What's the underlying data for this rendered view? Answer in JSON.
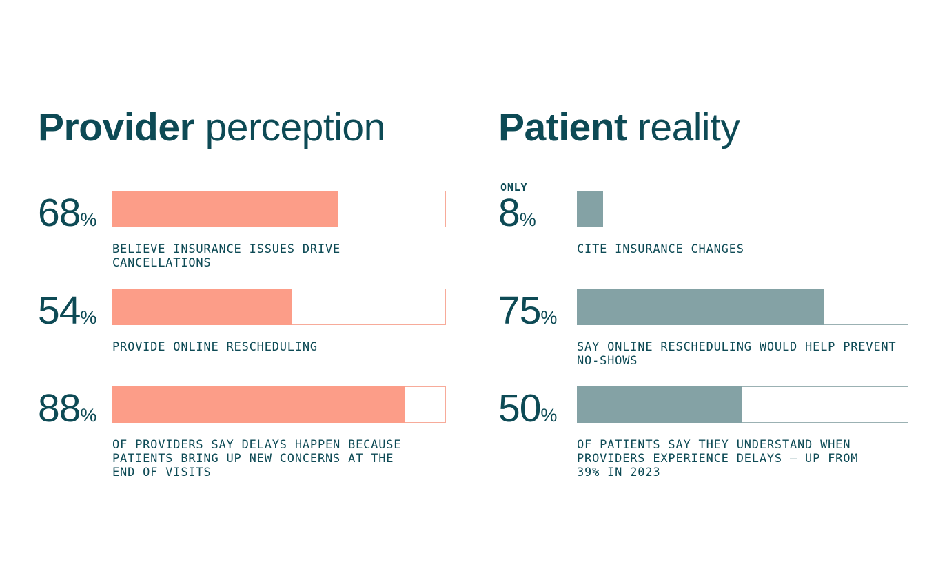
{
  "colors": {
    "text": "#0d4a55",
    "provider_fill": "#fc9d88",
    "provider_track_border": "#f7ab9a",
    "patient_fill": "#84a2a5",
    "patient_track_border": "#9bb1b3",
    "background": "#ffffff"
  },
  "columns": [
    {
      "title_bold": "Provider",
      "title_rest": " perception",
      "stats": [
        {
          "value": "68",
          "unit": "%",
          "pct": 68,
          "caption": "BELIEVE INSURANCE ISSUES DRIVE CANCELLATIONS"
        },
        {
          "value": "54",
          "unit": "%",
          "pct": 54,
          "caption": "PROVIDE ONLINE RESCHEDULING"
        },
        {
          "value": "88",
          "unit": "%",
          "pct": 88,
          "caption": "OF PROVIDERS SAY DELAYS HAPPEN BECAUSE\nPATIENTS BRING UP NEW CONCERNS AT THE\nEND OF VISITS"
        }
      ]
    },
    {
      "title_bold": "Patient",
      "title_rest": " reality",
      "stats": [
        {
          "kicker": "ONLY",
          "value": "8",
          "unit": "%",
          "pct": 8,
          "caption": "CITE INSURANCE CHANGES"
        },
        {
          "value": "75",
          "unit": "%",
          "pct": 75,
          "caption": "SAY ONLINE RESCHEDULING WOULD HELP PREVENT\nNO-SHOWS"
        },
        {
          "value": "50",
          "unit": "%",
          "pct": 50,
          "caption": "OF PATIENTS SAY THEY UNDERSTAND WHEN\nPROVIDERS EXPERIENCE DELAYS — UP FROM\n39% IN 2023"
        }
      ]
    }
  ],
  "chart_data": [
    {
      "type": "bar",
      "title": "Provider perception",
      "categories": [
        "BELIEVE INSURANCE ISSUES DRIVE CANCELLATIONS",
        "PROVIDE ONLINE RESCHEDULING",
        "OF PROVIDERS SAY DELAYS HAPPEN BECAUSE PATIENTS BRING UP NEW CONCERNS AT THE END OF VISITS"
      ],
      "values": [
        68,
        54,
        88
      ],
      "unit": "percent",
      "xlim": [
        0,
        100
      ],
      "orientation": "horizontal",
      "bar_color": "#fc9d88",
      "grid": false,
      "legend": false
    },
    {
      "type": "bar",
      "title": "Patient reality",
      "categories": [
        "CITE INSURANCE CHANGES",
        "SAY ONLINE RESCHEDULING WOULD HELP PREVENT NO-SHOWS",
        "OF PATIENTS SAY THEY UNDERSTAND WHEN PROVIDERS EXPERIENCE DELAYS — UP FROM 39% IN 2023"
      ],
      "values": [
        8,
        75,
        50
      ],
      "unit": "percent",
      "xlim": [
        0,
        100
      ],
      "orientation": "horizontal",
      "bar_color": "#84a2a5",
      "grid": false,
      "legend": false,
      "annotations": [
        "ONLY 8%",
        "up from 39% in 2023"
      ]
    }
  ]
}
